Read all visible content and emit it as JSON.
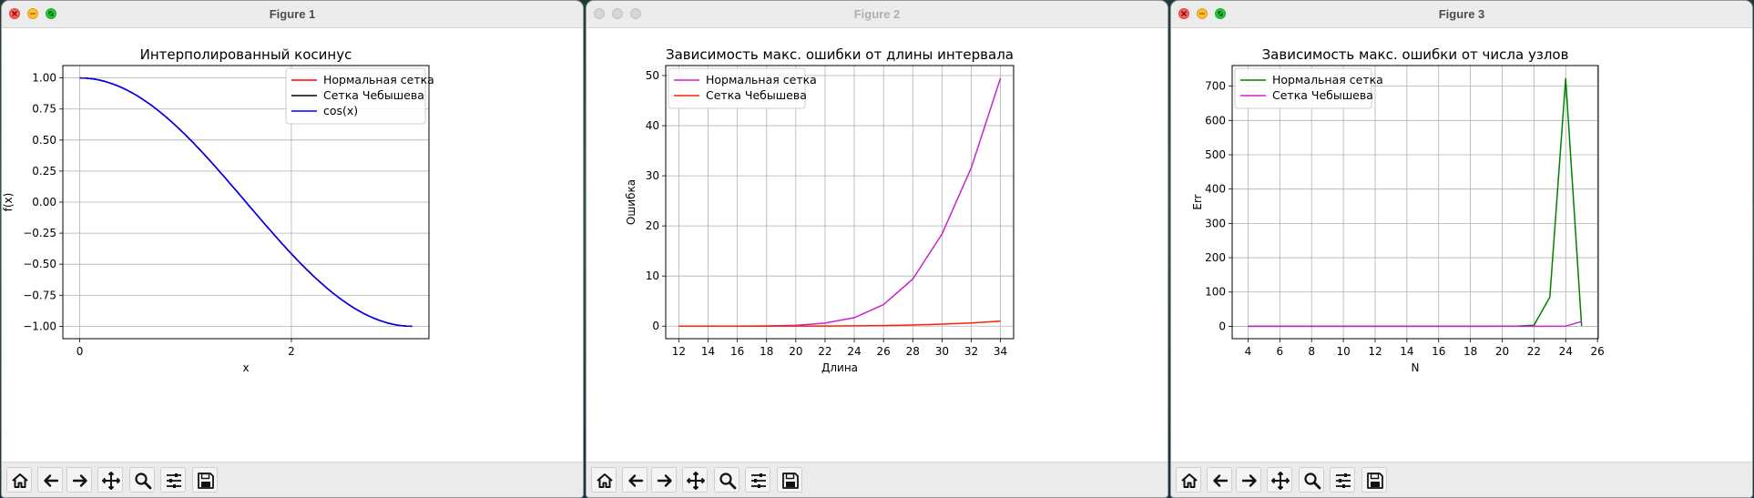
{
  "windows": [
    {
      "title": "Figure 1",
      "active": true,
      "toolbar": [
        "home-icon",
        "back-arrow-icon",
        "forward-arrow-icon",
        "pan-icon",
        "zoom-icon",
        "configure-subplots-icon",
        "save-icon"
      ],
      "chart_data": {
        "type": "line",
        "title": "Интерполированный косинус",
        "xlabel": "x",
        "ylabel": "f(x)",
        "xlim": [
          -0.16,
          3.3
        ],
        "ylim": [
          -1.1,
          1.1
        ],
        "xticks": [
          0,
          2
        ],
        "xtick_labels": [
          "0",
          "2"
        ],
        "yticks": [
          -1.0,
          -0.75,
          -0.5,
          -0.25,
          0.0,
          0.25,
          0.5,
          0.75,
          1.0
        ],
        "ytick_labels": [
          "−1.00",
          "−0.75",
          "−0.50",
          "−0.25",
          "0.00",
          "0.25",
          "0.50",
          "0.75",
          "1.00"
        ],
        "grid": true,
        "legend_position": "top-right",
        "series": [
          {
            "name": "Нормальная сетка",
            "color": "#ff0000",
            "x": [
              0,
              0.262,
              0.524,
              0.785,
              1.047,
              1.309,
              1.571,
              1.833,
              2.094,
              2.356,
              2.618,
              2.88,
              3.142
            ],
            "y": [
              1.0,
              0.966,
              0.866,
              0.707,
              0.5,
              0.259,
              0.0,
              -0.259,
              -0.5,
              -0.707,
              -0.866,
              -0.966,
              -1.0
            ]
          },
          {
            "name": "Сетка Чебышева",
            "color": "#000000",
            "x": [
              0,
              0.262,
              0.524,
              0.785,
              1.047,
              1.309,
              1.571,
              1.833,
              2.094,
              2.356,
              2.618,
              2.88,
              3.142
            ],
            "y": [
              1.0,
              0.966,
              0.866,
              0.707,
              0.5,
              0.259,
              0.0,
              -0.259,
              -0.5,
              -0.707,
              -0.866,
              -0.966,
              -1.0
            ]
          },
          {
            "name": "cos(x)",
            "color": "#0000ff",
            "x": [
              0,
              0.262,
              0.524,
              0.785,
              1.047,
              1.309,
              1.571,
              1.833,
              2.094,
              2.356,
              2.618,
              2.88,
              3.142
            ],
            "y": [
              1.0,
              0.966,
              0.866,
              0.707,
              0.5,
              0.259,
              0.0,
              -0.259,
              -0.5,
              -0.707,
              -0.866,
              -0.966,
              -1.0
            ]
          }
        ]
      }
    },
    {
      "title": "Figure 2",
      "active": false,
      "toolbar": [
        "home-icon",
        "back-arrow-icon",
        "forward-arrow-icon",
        "pan-icon",
        "zoom-icon",
        "configure-subplots-icon",
        "save-icon"
      ],
      "chart_data": {
        "type": "line",
        "title": "Зависимость макс. ошибки от длины интервала",
        "xlabel": "Длина",
        "ylabel": "Ошибка",
        "xlim": [
          11.1,
          34.9
        ],
        "ylim": [
          -2.5,
          52
        ],
        "xticks": [
          12,
          14,
          16,
          18,
          20,
          22,
          24,
          26,
          28,
          30,
          32,
          34
        ],
        "xtick_labels": [
          "12",
          "14",
          "16",
          "18",
          "20",
          "22",
          "24",
          "26",
          "28",
          "30",
          "32",
          "34"
        ],
        "yticks": [
          0,
          10,
          20,
          30,
          40,
          50
        ],
        "ytick_labels": [
          "0",
          "10",
          "20",
          "30",
          "40",
          "50"
        ],
        "grid": true,
        "legend_position": "top-left",
        "series": [
          {
            "name": "Нормальная сетка",
            "color": "#cc22cc",
            "x": [
              12,
              14,
              16,
              18,
              20,
              22,
              24,
              26,
              28,
              30,
              32,
              34
            ],
            "y": [
              0.0,
              0.0,
              0.01,
              0.05,
              0.15,
              0.6,
              1.7,
              4.3,
              9.4,
              18.4,
              31.6,
              49.5
            ]
          },
          {
            "name": "Сетка Чебышева",
            "color": "#ff2200",
            "x": [
              12,
              14,
              16,
              18,
              20,
              22,
              24,
              26,
              28,
              30,
              32,
              34
            ],
            "y": [
              0.0,
              0.0,
              0.0,
              0.01,
              0.02,
              0.03,
              0.06,
              0.12,
              0.22,
              0.4,
              0.65,
              1.0
            ]
          }
        ]
      }
    },
    {
      "title": "Figure 3",
      "active": true,
      "toolbar": [
        "home-icon",
        "back-arrow-icon",
        "forward-arrow-icon",
        "pan-icon",
        "zoom-icon",
        "configure-subplots-icon",
        "save-icon"
      ],
      "chart_data": {
        "type": "line",
        "title": "Зависимость макс. ошибки от числа узлов",
        "xlabel": "N",
        "ylabel": "Err",
        "xlim": [
          3.0,
          26.05
        ],
        "ylim": [
          -36,
          760
        ],
        "xticks": [
          4,
          6,
          8,
          10,
          12,
          14,
          16,
          18,
          20,
          22,
          24,
          26
        ],
        "xtick_labels": [
          "4",
          "6",
          "8",
          "10",
          "12",
          "14",
          "16",
          "18",
          "20",
          "22",
          "24",
          "26"
        ],
        "yticks": [
          0,
          100,
          200,
          300,
          400,
          500,
          600,
          700
        ],
        "ytick_labels": [
          "0",
          "100",
          "200",
          "300",
          "400",
          "500",
          "600",
          "700"
        ],
        "grid": true,
        "legend_position": "top-left",
        "series": [
          {
            "name": "Нормальная сетка",
            "color": "#008000",
            "x": [
              4,
              5,
              6,
              7,
              8,
              9,
              10,
              11,
              12,
              13,
              14,
              15,
              16,
              17,
              18,
              19,
              20,
              21,
              22,
              23,
              24,
              25
            ],
            "y": [
              0,
              0,
              0,
              0,
              0,
              0,
              0,
              0,
              0,
              0,
              0,
              0,
              0,
              0,
              0,
              0,
              0.3,
              0.8,
              3,
              85,
              722,
              1
            ]
          },
          {
            "name": "Сетка Чебышева",
            "color": "#cc22cc",
            "x": [
              4,
              5,
              6,
              7,
              8,
              9,
              10,
              11,
              12,
              13,
              14,
              15,
              16,
              17,
              18,
              19,
              20,
              21,
              22,
              23,
              24,
              25
            ],
            "y": [
              0,
              0,
              0,
              0,
              0,
              0,
              0,
              0,
              0,
              0,
              0,
              0,
              0,
              0,
              0,
              0,
              0,
              0,
              0,
              0,
              0.5,
              14
            ]
          }
        ]
      }
    }
  ]
}
